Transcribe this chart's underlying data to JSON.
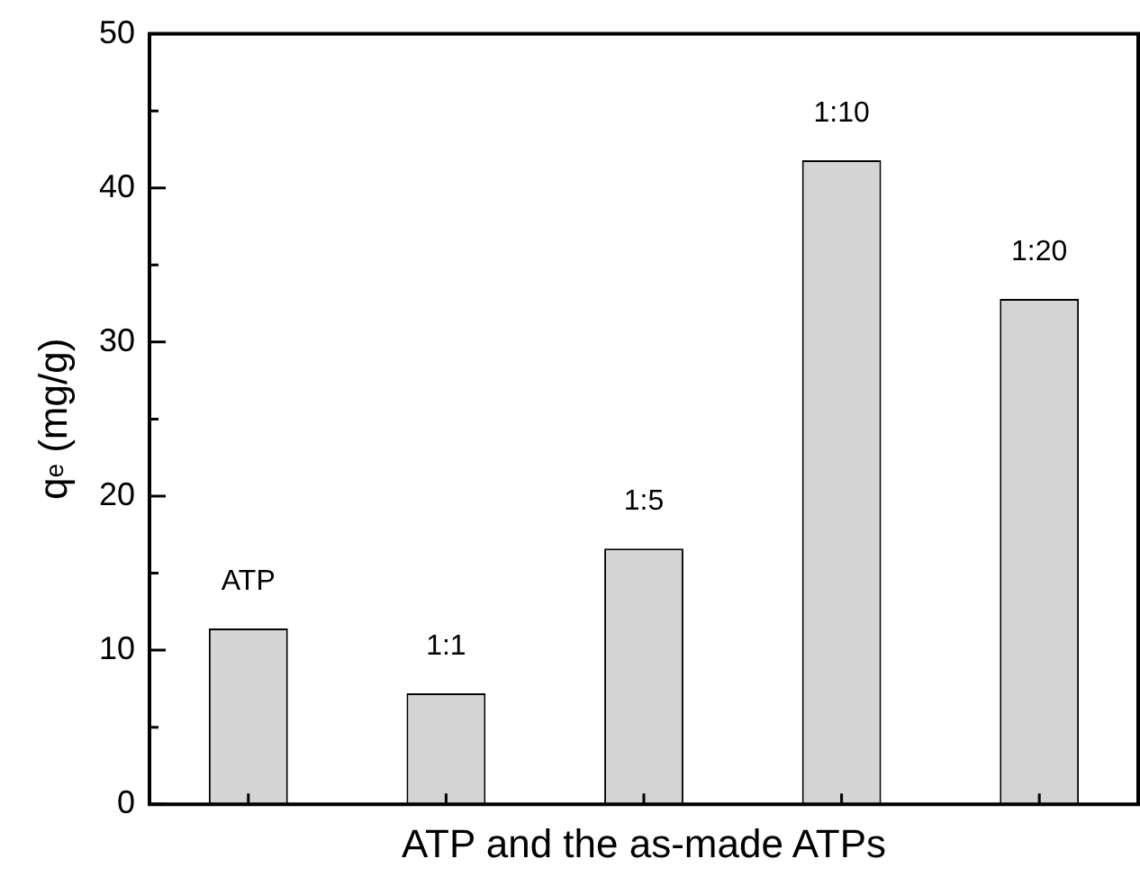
{
  "chart_data": {
    "type": "bar",
    "xlabel": "ATP and the as-made ATPs",
    "ylabel": "q$_{e}$ (mg/g)",
    "categories": [
      "ATP",
      "1:1",
      "1:5",
      "1:10",
      "1:20"
    ],
    "values": [
      11.4,
      7.2,
      16.6,
      41.8,
      32.8
    ],
    "color": "#d4d4d4",
    "ylim": [
      0,
      50
    ],
    "yticks": [
      0,
      {
        "value": 5,
        "label": null
      },
      10,
      {
        "value": 15,
        "label": null
      },
      20,
      {
        "value": 25,
        "label": null
      },
      30,
      {
        "value": 35,
        "label": null
      },
      40,
      {
        "value": 45,
        "label": null
      },
      50
    ],
    "tick_labels": "y",
    "grid": false,
    "legend": false
  }
}
